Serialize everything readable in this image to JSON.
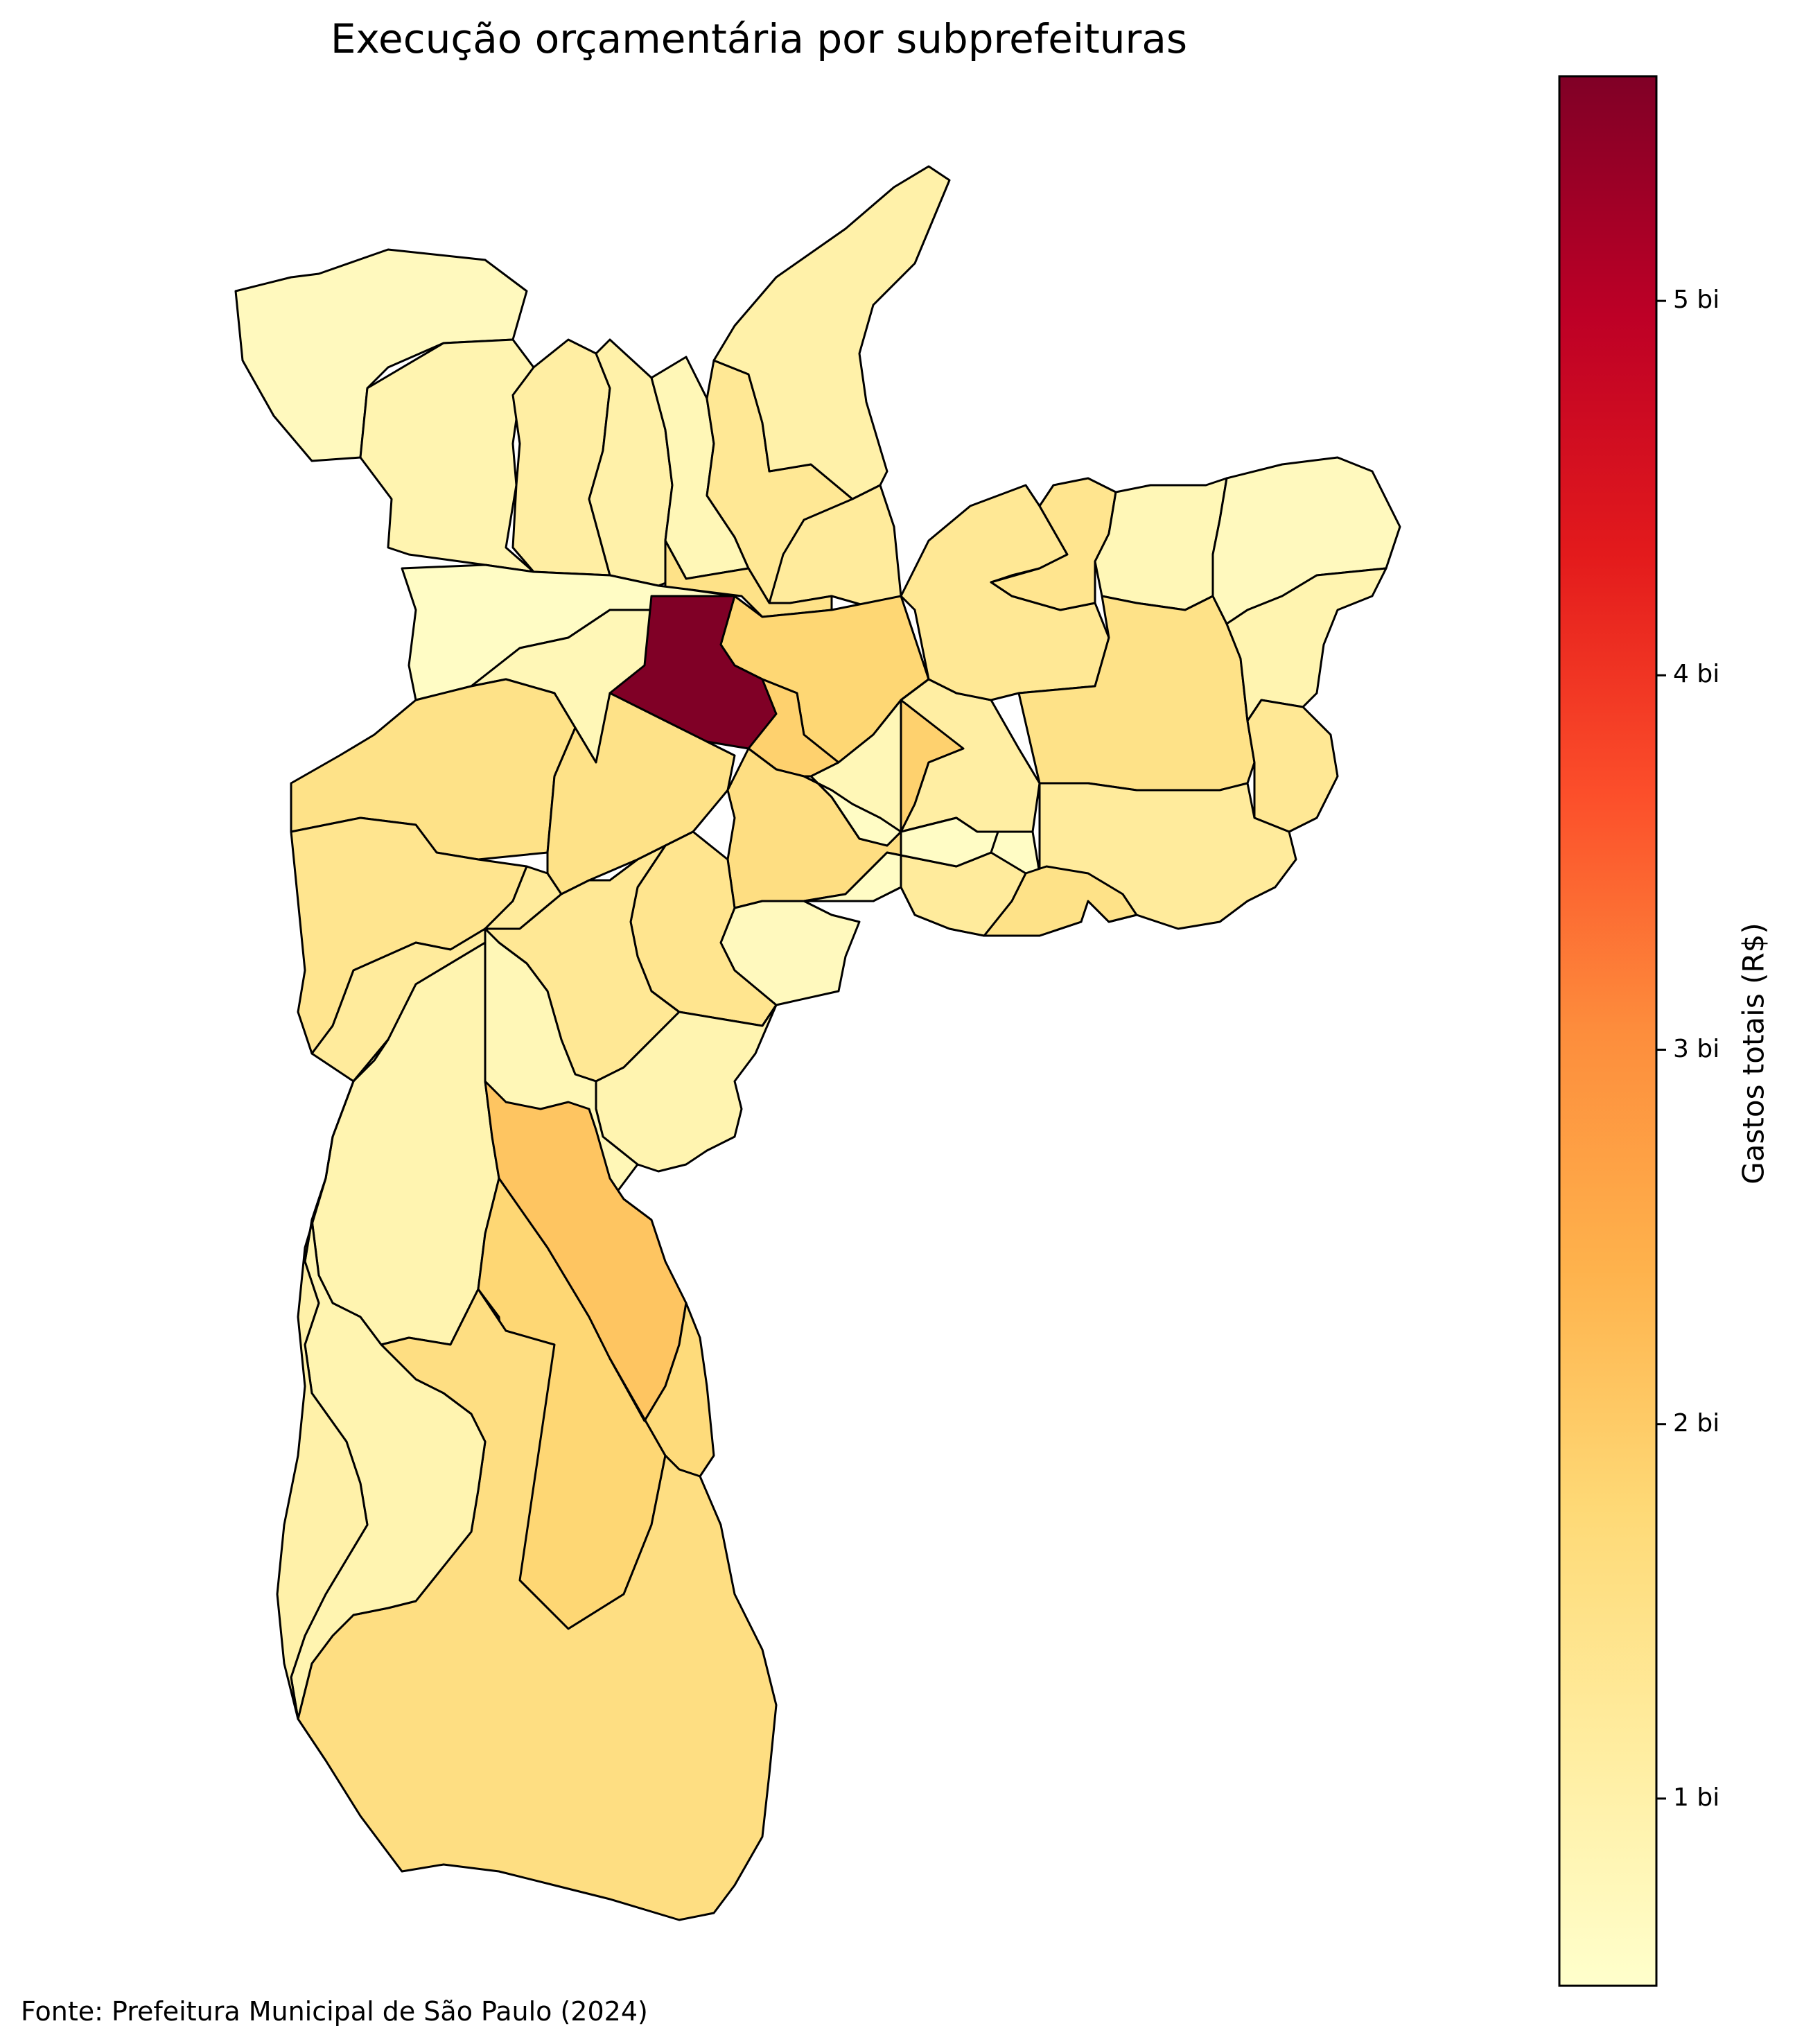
{
  "title": "Execução orçamentária por subprefeituras",
  "source": "Fonte: Prefeitura Municipal de São Paulo (2024)",
  "colorbar": {
    "label": "Gastos totais (R$)",
    "min": 0.5,
    "max": 5.6,
    "ticks": [
      {
        "value": 1,
        "label": "1 bi"
      },
      {
        "value": 2,
        "label": "2 bi"
      },
      {
        "value": 3,
        "label": "3 bi"
      },
      {
        "value": 4,
        "label": "4 bi"
      },
      {
        "value": 5,
        "label": "5 bi"
      }
    ],
    "colormap": [
      "#ffffcc",
      "#ffeda0",
      "#fed976",
      "#feb24c",
      "#fd8d3c",
      "#fc4e2a",
      "#e31a1c",
      "#bd0026",
      "#800026"
    ]
  },
  "chart_data": {
    "type": "heatmap",
    "title": "Execução orçamentária por subprefeituras",
    "colorbar_label": "Gastos totais (R$)",
    "value_range": [
      0.5,
      5.6
    ],
    "region_values_bi": [
      0.7,
      0.9,
      1.1,
      1.0,
      0.8,
      1.3,
      1.0,
      1.2,
      1.5,
      0.6,
      0.8,
      1.5,
      1.4,
      1.2,
      1.8,
      5.6,
      1.9,
      1.5,
      1.6,
      1.1,
      0.6,
      1.3,
      1.4,
      0.8,
      1.5,
      0.7,
      0.9,
      1.3,
      1.2,
      1.5,
      0.8,
      1.2,
      0.6,
      0.7,
      1.4,
      1.3,
      0.9,
      0.8,
      0.9,
      1.8,
      2.1,
      1.7,
      1.6,
      0.9,
      1.0
    ]
  }
}
